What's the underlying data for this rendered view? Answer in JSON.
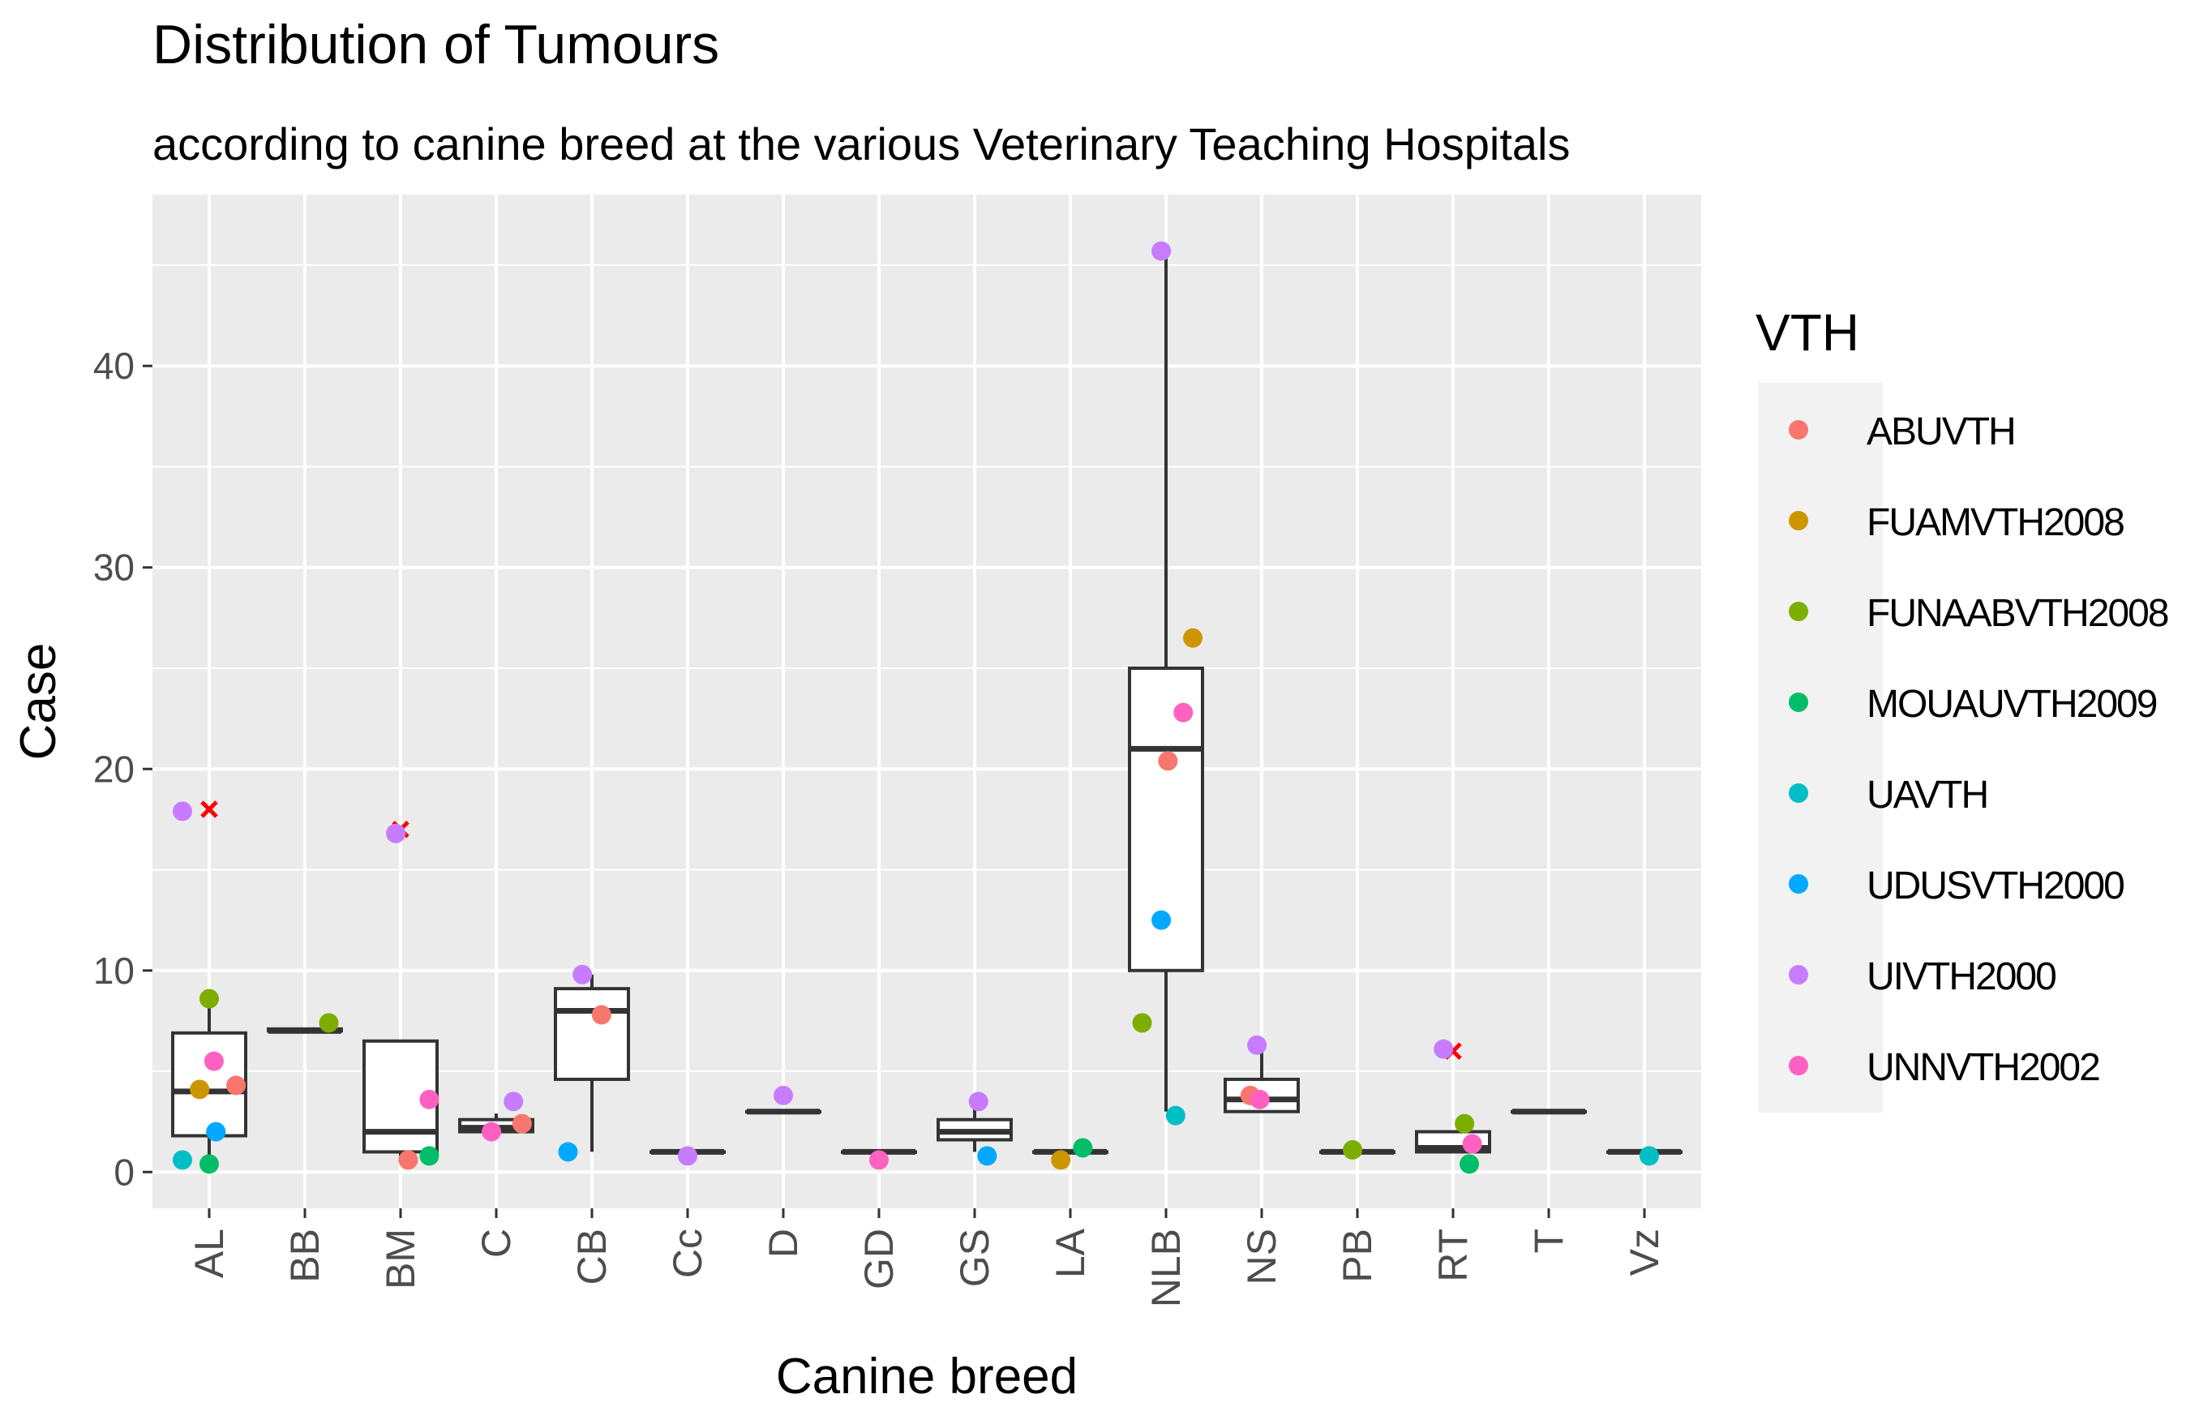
{
  "chart_data": {
    "type": "boxplot+jitter",
    "title": "Distribution of Tumours",
    "subtitle": "according to canine breed at the various Veterinary Teaching Hospitals",
    "xlabel": "Canine breed",
    "ylabel": "Case",
    "ylim": [
      -1.8,
      48.5
    ],
    "yticks": [
      0,
      10,
      20,
      30,
      40
    ],
    "ytick_labels": [
      "0",
      "10",
      "20",
      "30",
      "40"
    ],
    "grid": true,
    "legend_position": "right",
    "legend_title": "VTH",
    "categories": [
      "AL",
      "BB",
      "BM",
      "C",
      "CB",
      "Cc",
      "D",
      "GD",
      "GS",
      "LA",
      "NLB",
      "NS",
      "PB",
      "RT",
      "T",
      "Vz"
    ],
    "boxes": [
      {
        "category": "AL",
        "q1": 1.8,
        "median": 4.0,
        "q3": 6.9,
        "whisker_low": 0.4,
        "whisker_high": 8.6,
        "outliers": [
          18.0
        ]
      },
      {
        "category": "BB",
        "q1": 7.0,
        "median": 7.0,
        "q3": 7.1,
        "whisker_low": 7.0,
        "whisker_high": 7.1,
        "outliers": []
      },
      {
        "category": "BM",
        "q1": 1.0,
        "median": 2.0,
        "q3": 6.5,
        "whisker_low": 0.8,
        "whisker_high": 6.5,
        "outliers": [
          17.0
        ]
      },
      {
        "category": "C",
        "q1": 2.0,
        "median": 2.2,
        "q3": 2.6,
        "whisker_low": 2.0,
        "whisker_high": 2.9,
        "outliers": []
      },
      {
        "category": "CB",
        "q1": 4.6,
        "median": 8.0,
        "q3": 9.1,
        "whisker_low": 1.0,
        "whisker_high": 9.8,
        "outliers": []
      },
      {
        "category": "Cc",
        "q1": 1.0,
        "median": 1.0,
        "q3": 1.0,
        "whisker_low": 1.0,
        "whisker_high": 1.0,
        "outliers": []
      },
      {
        "category": "D",
        "q1": 3.0,
        "median": 3.0,
        "q3": 3.0,
        "whisker_low": 3.0,
        "whisker_high": 3.0,
        "outliers": []
      },
      {
        "category": "GD",
        "q1": 1.0,
        "median": 1.0,
        "q3": 1.0,
        "whisker_low": 1.0,
        "whisker_high": 1.0,
        "outliers": []
      },
      {
        "category": "GS",
        "q1": 1.6,
        "median": 2.0,
        "q3": 2.6,
        "whisker_low": 1.0,
        "whisker_high": 3.5,
        "outliers": []
      },
      {
        "category": "LA",
        "q1": 1.0,
        "median": 1.0,
        "q3": 1.0,
        "whisker_low": 1.0,
        "whisker_high": 1.0,
        "outliers": []
      },
      {
        "category": "NLB",
        "q1": 10.0,
        "median": 21.0,
        "q3": 25.0,
        "whisker_low": 3.0,
        "whisker_high": 46.0,
        "outliers": []
      },
      {
        "category": "NS",
        "q1": 3.0,
        "median": 3.6,
        "q3": 4.6,
        "whisker_low": 3.0,
        "whisker_high": 6.2,
        "outliers": []
      },
      {
        "category": "PB",
        "q1": 1.0,
        "median": 1.0,
        "q3": 1.0,
        "whisker_low": 1.0,
        "whisker_high": 1.0,
        "outliers": []
      },
      {
        "category": "RT",
        "q1": 1.0,
        "median": 1.2,
        "q3": 2.0,
        "whisker_low": 1.0,
        "whisker_high": 2.0,
        "outliers": [
          6.0
        ]
      },
      {
        "category": "T",
        "q1": 3.0,
        "median": 3.0,
        "q3": 3.0,
        "whisker_low": 3.0,
        "whisker_high": 3.0,
        "outliers": []
      },
      {
        "category": "Vz",
        "q1": 1.0,
        "median": 1.0,
        "q3": 1.0,
        "whisker_low": 1.0,
        "whisker_high": 1.0,
        "outliers": []
      }
    ],
    "series": [
      {
        "name": "ABUVTH",
        "color": "#F8766D",
        "points": [
          {
            "category": "AL",
            "offset": 0.28,
            "y": 4.3
          },
          {
            "category": "BM",
            "offset": 0.08,
            "y": 0.6
          },
          {
            "category": "C",
            "offset": 0.27,
            "y": 2.4
          },
          {
            "category": "CB",
            "offset": 0.1,
            "y": 7.8
          },
          {
            "category": "NLB",
            "offset": 0.02,
            "y": 20.4
          },
          {
            "category": "NS",
            "offset": -0.12,
            "y": 3.8
          }
        ]
      },
      {
        "name": "FUAMVTH2008",
        "color": "#CD9600",
        "points": [
          {
            "category": "AL",
            "offset": -0.1,
            "y": 4.1
          },
          {
            "category": "LA",
            "offset": -0.1,
            "y": 0.6
          },
          {
            "category": "NLB",
            "offset": 0.28,
            "y": 26.5
          }
        ]
      },
      {
        "name": "FUNAABVTH2008",
        "color": "#7CAE00",
        "points": [
          {
            "category": "AL",
            "offset": 0.0,
            "y": 8.6
          },
          {
            "category": "BB",
            "offset": 0.25,
            "y": 7.4
          },
          {
            "category": "NLB",
            "offset": -0.25,
            "y": 7.4
          },
          {
            "category": "PB",
            "offset": -0.05,
            "y": 1.1
          },
          {
            "category": "RT",
            "offset": 0.12,
            "y": 2.4
          }
        ]
      },
      {
        "name": "MOUAUVTH2009",
        "color": "#00BE67",
        "points": [
          {
            "category": "AL",
            "offset": 0.0,
            "y": 0.4
          },
          {
            "category": "BM",
            "offset": 0.3,
            "y": 0.8
          },
          {
            "category": "LA",
            "offset": 0.13,
            "y": 1.2
          },
          {
            "category": "RT",
            "offset": 0.17,
            "y": 0.4
          }
        ]
      },
      {
        "name": "UAVTH",
        "color": "#00BFC4",
        "points": [
          {
            "category": "AL",
            "offset": -0.28,
            "y": 0.6
          },
          {
            "category": "NLB",
            "offset": 0.1,
            "y": 2.8
          },
          {
            "category": "Vz",
            "offset": 0.05,
            "y": 0.8
          }
        ]
      },
      {
        "name": "UDUSVTH2000",
        "color": "#00A9FF",
        "points": [
          {
            "category": "AL",
            "offset": 0.07,
            "y": 2.0
          },
          {
            "category": "CB",
            "offset": -0.25,
            "y": 1.0
          },
          {
            "category": "GS",
            "offset": 0.13,
            "y": 0.8
          },
          {
            "category": "NLB",
            "offset": -0.05,
            "y": 12.5
          }
        ]
      },
      {
        "name": "UIVTH2000",
        "color": "#C77CFF",
        "points": [
          {
            "category": "AL",
            "offset": -0.28,
            "y": 17.9
          },
          {
            "category": "BM",
            "offset": -0.05,
            "y": 16.8
          },
          {
            "category": "C",
            "offset": 0.18,
            "y": 3.5
          },
          {
            "category": "CB",
            "offset": -0.1,
            "y": 9.8
          },
          {
            "category": "Cc",
            "offset": 0.0,
            "y": 0.8
          },
          {
            "category": "D",
            "offset": 0.0,
            "y": 3.8
          },
          {
            "category": "GS",
            "offset": 0.04,
            "y": 3.5
          },
          {
            "category": "NLB",
            "offset": -0.05,
            "y": 45.7
          },
          {
            "category": "NS",
            "offset": -0.05,
            "y": 6.3
          },
          {
            "category": "RT",
            "offset": -0.1,
            "y": 6.1
          }
        ]
      },
      {
        "name": "UNNVTH2002",
        "color": "#FF61C3",
        "points": [
          {
            "category": "AL",
            "offset": 0.05,
            "y": 5.5
          },
          {
            "category": "BM",
            "offset": 0.3,
            "y": 3.6
          },
          {
            "category": "C",
            "offset": -0.05,
            "y": 2.0
          },
          {
            "category": "GD",
            "offset": 0.0,
            "y": 0.6
          },
          {
            "category": "NLB",
            "offset": 0.18,
            "y": 22.8
          },
          {
            "category": "NS",
            "offset": -0.02,
            "y": 3.6
          },
          {
            "category": "RT",
            "offset": 0.2,
            "y": 1.4
          }
        ]
      }
    ]
  }
}
